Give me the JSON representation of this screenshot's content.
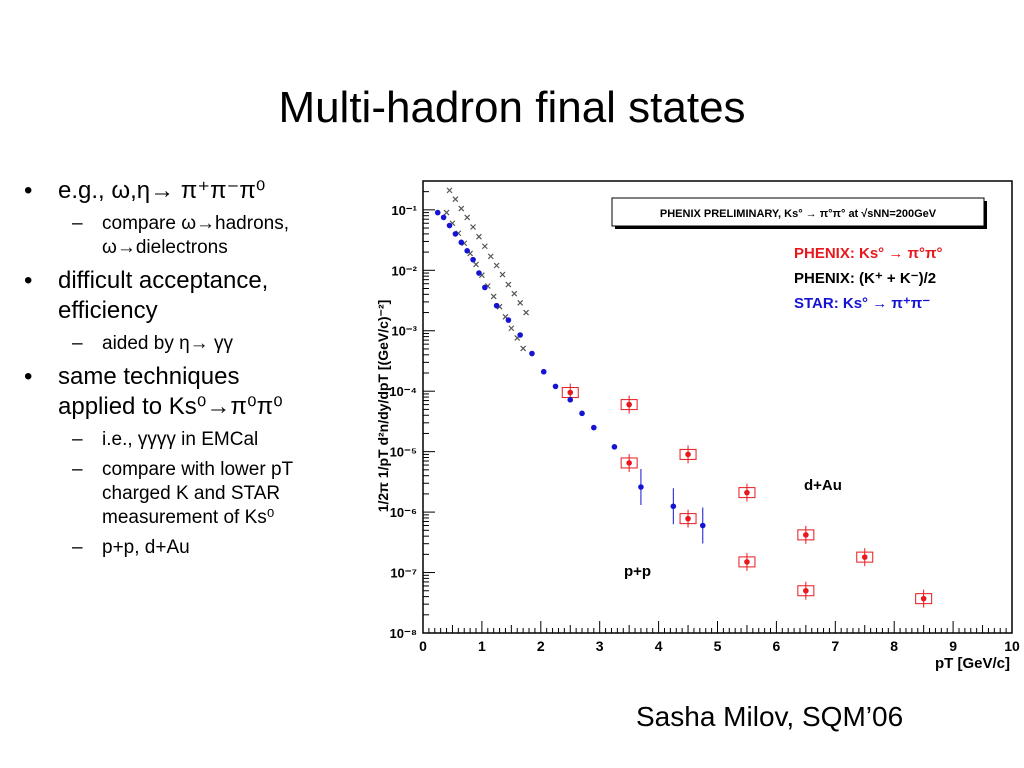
{
  "slide": {
    "title": "Multi-hadron final states",
    "credit": "Sasha Milov, SQM’06"
  },
  "bullets": [
    {
      "level": 1,
      "text": "e.g., ω,η→ π⁺π⁻π⁰"
    },
    {
      "level": 2,
      "text": "compare ω→hadrons,"
    },
    {
      "level": 2,
      "text": "ω→dielectrons"
    },
    {
      "level": 1,
      "text": "difficult acceptance,"
    },
    {
      "level": 1,
      "text": "efficiency"
    },
    {
      "level": 2,
      "text": "aided by η→ γγ"
    },
    {
      "level": 1,
      "text": "same techniques"
    },
    {
      "level": 1,
      "text": "applied to Ks⁰→π⁰π⁰"
    },
    {
      "level": 2,
      "text": "i.e., γγγγ in EMCal"
    },
    {
      "level": 2,
      "text": "compare with lower pT"
    },
    {
      "level": 2,
      "text": "charged K and STAR"
    },
    {
      "level": 2,
      "text": "measurement of Ks⁰"
    },
    {
      "level": 2,
      "text": "p+p, d+Au"
    }
  ],
  "chart_data": {
    "type": "scatter",
    "title": "PHENIX PRELIMINARY, Ks° → π°π° at √sNN=200GeV",
    "xlabel": "pT [GeV/c]",
    "ylabel": "1/2π  1/pT  d²n/dy/dpT [(GeV/c)⁻²]",
    "xlim": [
      0,
      10
    ],
    "ylim": [
      1e-08,
      0.3
    ],
    "y_scale": "log",
    "x_ticks": [
      "0",
      "1",
      "2",
      "3",
      "4",
      "5",
      "6",
      "7",
      "8",
      "9",
      "10"
    ],
    "y_ticks": [
      "10⁻⁸",
      "10⁻⁷",
      "10⁻⁶",
      "10⁻⁵",
      "10⁻⁴",
      "10⁻³",
      "10⁻²",
      "10⁻¹"
    ],
    "grid": false,
    "legend_position": "top-right",
    "annotations": [
      "d+Au",
      "p+p"
    ],
    "series": [
      {
        "name": "PHENIX: Ks° → π°π°",
        "color": "#e8191e",
        "marker": "circle-with-box",
        "points": [
          {
            "x": 2.5,
            "y": 9.5e-05
          },
          {
            "x": 3.5,
            "y": 6.5e-06
          },
          {
            "x": 4.5,
            "y": 7.8e-07
          },
          {
            "x": 5.5,
            "y": 1.5e-07
          },
          {
            "x": 6.5,
            "y": 5e-08
          },
          {
            "x": 3.5,
            "y": 6e-05
          },
          {
            "x": 4.5,
            "y": 9e-06
          },
          {
            "x": 5.5,
            "y": 2.1e-06
          },
          {
            "x": 6.5,
            "y": 4.2e-07
          },
          {
            "x": 7.5,
            "y": 1.8e-07
          },
          {
            "x": 8.5,
            "y": 3.7e-08
          }
        ]
      },
      {
        "name": "PHENIX: (K⁺ + K⁻)/2",
        "color": "#000000",
        "marker": "cross",
        "points": [
          {
            "x": 0.45,
            "y": 0.21
          },
          {
            "x": 0.55,
            "y": 0.15
          },
          {
            "x": 0.65,
            "y": 0.105
          },
          {
            "x": 0.75,
            "y": 0.075
          },
          {
            "x": 0.85,
            "y": 0.052
          },
          {
            "x": 0.95,
            "y": 0.036
          },
          {
            "x": 1.05,
            "y": 0.025
          },
          {
            "x": 1.15,
            "y": 0.017
          },
          {
            "x": 1.25,
            "y": 0.012
          },
          {
            "x": 1.35,
            "y": 0.0085
          },
          {
            "x": 1.45,
            "y": 0.0058
          },
          {
            "x": 1.55,
            "y": 0.0041
          },
          {
            "x": 1.65,
            "y": 0.0029
          },
          {
            "x": 1.75,
            "y": 0.002
          },
          {
            "x": 0.4,
            "y": 0.09
          },
          {
            "x": 0.5,
            "y": 0.06
          },
          {
            "x": 0.6,
            "y": 0.041
          },
          {
            "x": 0.7,
            "y": 0.028
          },
          {
            "x": 0.8,
            "y": 0.019
          },
          {
            "x": 0.9,
            "y": 0.0125
          },
          {
            "x": 1.0,
            "y": 0.0083
          },
          {
            "x": 1.1,
            "y": 0.0055
          },
          {
            "x": 1.2,
            "y": 0.0037
          },
          {
            "x": 1.3,
            "y": 0.0025
          },
          {
            "x": 1.4,
            "y": 0.0017
          },
          {
            "x": 1.5,
            "y": 0.0011
          },
          {
            "x": 1.6,
            "y": 0.00076
          },
          {
            "x": 1.7,
            "y": 0.00051
          }
        ]
      },
      {
        "name": "STAR: Ks° → π⁺π⁻",
        "color": "#1414d2",
        "marker": "circle",
        "points": [
          {
            "x": 0.25,
            "y": 0.09
          },
          {
            "x": 0.35,
            "y": 0.075
          },
          {
            "x": 0.45,
            "y": 0.055
          },
          {
            "x": 0.55,
            "y": 0.04
          },
          {
            "x": 0.65,
            "y": 0.029
          },
          {
            "x": 0.75,
            "y": 0.021
          },
          {
            "x": 0.85,
            "y": 0.015
          },
          {
            "x": 0.95,
            "y": 0.009
          },
          {
            "x": 1.05,
            "y": 0.0052
          },
          {
            "x": 1.25,
            "y": 0.0026
          },
          {
            "x": 1.45,
            "y": 0.0015
          },
          {
            "x": 1.65,
            "y": 0.00085
          },
          {
            "x": 1.85,
            "y": 0.00042
          },
          {
            "x": 2.05,
            "y": 0.00021
          },
          {
            "x": 2.25,
            "y": 0.00012
          },
          {
            "x": 2.5,
            "y": 7.2e-05
          },
          {
            "x": 2.7,
            "y": 4.3e-05
          },
          {
            "x": 2.9,
            "y": 2.5e-05
          },
          {
            "x": 3.25,
            "y": 1.2e-05
          },
          {
            "x": 3.7,
            "y": 2.6e-06
          },
          {
            "x": 4.25,
            "y": 1.25e-06
          },
          {
            "x": 4.75,
            "y": 6e-07
          }
        ]
      }
    ]
  }
}
